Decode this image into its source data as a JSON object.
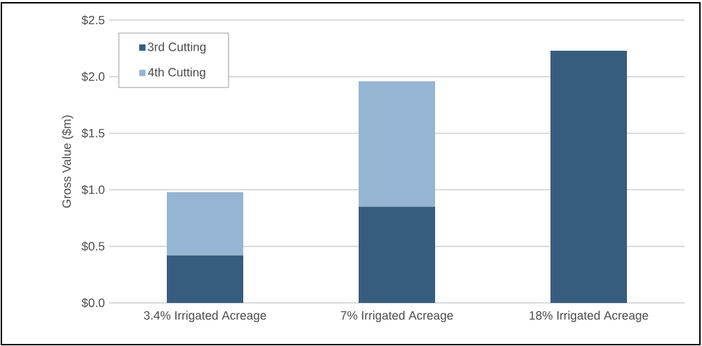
{
  "chart_data": {
    "type": "bar",
    "ylabel": "Gross Value ($m)",
    "stacked": true,
    "categories": [
      "3.4% Irrigated Acreage",
      "7% Irrigated Acreage",
      "18% Irrigated Acreage"
    ],
    "series": [
      {
        "name": "3rd Cutting",
        "color": "#365d7e",
        "values": [
          0.42,
          0.85,
          2.23
        ]
      },
      {
        "name": "4th Cutting",
        "color": "#95b5d2",
        "values": [
          0.56,
          1.11,
          0
        ]
      }
    ],
    "ylim": [
      0,
      2.5
    ],
    "yticks": [
      {
        "value": 0,
        "label": "$0.0"
      },
      {
        "value": 0.5,
        "label": "$0.5"
      },
      {
        "value": 1,
        "label": "$1.0"
      },
      {
        "value": 1.5,
        "label": "$1.5"
      },
      {
        "value": 2,
        "label": "$2.0"
      },
      {
        "value": 2.5,
        "label": "$2.5"
      }
    ],
    "grid": "y",
    "legend": "top left"
  }
}
